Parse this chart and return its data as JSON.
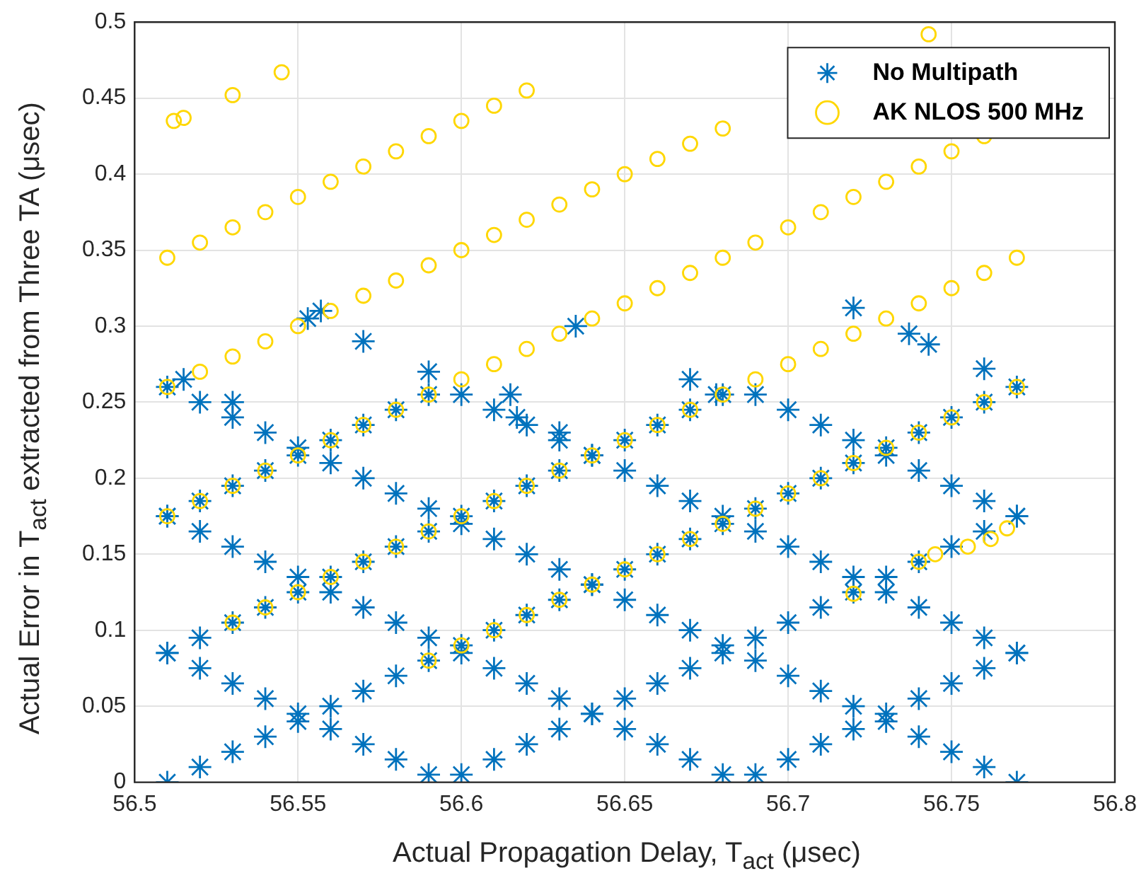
{
  "chart_data": {
    "type": "scatter",
    "xlabel": "Actual Propagation Delay, T$_{act}$ (μsec)",
    "ylabel": "Actual Error in T$_{act}$ extracted from Three TA (μsec)",
    "xlim": [
      56.5,
      56.8
    ],
    "xticks": [
      56.5,
      56.55,
      56.6,
      56.65,
      56.7,
      56.75,
      56.8
    ],
    "ylim": [
      0,
      0.5
    ],
    "yticks": [
      0,
      0.05,
      0.1,
      0.15,
      0.2,
      0.25,
      0.3,
      0.35,
      0.4,
      0.45,
      0.5
    ],
    "grid": true,
    "legend": "top right",
    "series": [
      {
        "name": "No Multipath",
        "color": "#0072bd",
        "marker": "cross",
        "x": [
          56.51,
          56.52,
          56.53,
          56.54,
          56.55,
          56.56,
          56.57,
          56.58,
          56.59,
          56.6,
          56.61,
          56.62,
          56.63,
          56.64,
          56.65,
          56.66,
          56.67,
          56.68,
          56.69,
          56.7,
          56.71,
          56.72,
          56.73,
          56.74,
          56.75,
          56.76,
          56.77,
          56.51,
          56.52,
          56.53,
          56.54,
          56.55,
          56.56,
          56.57,
          56.58,
          56.59,
          56.6,
          56.61,
          56.62,
          56.63,
          56.64,
          56.65,
          56.66,
          56.67,
          56.68,
          56.69,
          56.7,
          56.71,
          56.72,
          56.73,
          56.74,
          56.75,
          56.76,
          56.77,
          56.51,
          56.52,
          56.53,
          56.54,
          56.55,
          56.56,
          56.57,
          56.58,
          56.59,
          56.6,
          56.61,
          56.62,
          56.63,
          56.64,
          56.65,
          56.66,
          56.67,
          56.68,
          56.69,
          56.7,
          56.71,
          56.72,
          56.73,
          56.74,
          56.75,
          56.76,
          56.77,
          56.51,
          56.52,
          56.53,
          56.54,
          56.55,
          56.56,
          56.57,
          56.58,
          56.59,
          56.6,
          56.61,
          56.62,
          56.63,
          56.64,
          56.65,
          56.66,
          56.67,
          56.68,
          56.69,
          56.7,
          56.71,
          56.72,
          56.73,
          56.74,
          56.75,
          56.76,
          56.77,
          56.51,
          56.52,
          56.53,
          56.54,
          56.55,
          56.56,
          56.57,
          56.58,
          56.59,
          56.6,
          56.61,
          56.62,
          56.63,
          56.64,
          56.65,
          56.66,
          56.67,
          56.68,
          56.69,
          56.7,
          56.71,
          56.72,
          56.73,
          56.74,
          56.75,
          56.76,
          56.77,
          56.51,
          56.52,
          56.53,
          56.54,
          56.55,
          56.56,
          56.57,
          56.58,
          56.59,
          56.6,
          56.61,
          56.62,
          56.63,
          56.64,
          56.65,
          56.66,
          56.67,
          56.68,
          56.69,
          56.7,
          56.71,
          56.72,
          56.73,
          56.74,
          56.75,
          56.76,
          56.77,
          56.515,
          56.53,
          56.553,
          56.557,
          56.57,
          56.59,
          56.615,
          56.617,
          56.635,
          56.63,
          56.67,
          56.678,
          56.72,
          56.737,
          56.743,
          56.76
        ],
        "values": [
          0,
          0.01,
          0.02,
          0.03,
          0.04,
          0.05,
          0.06,
          0.07,
          0.08,
          0.09,
          0.1,
          0.11,
          0.12,
          0.13,
          0.14,
          0.15,
          0.16,
          0.17,
          0.18,
          0.19,
          0.2,
          0.21,
          0.22,
          0.23,
          0.24,
          0.25,
          0.26,
          0.26,
          0.25,
          0.24,
          0.23,
          0.22,
          0.21,
          0.2,
          0.19,
          0.18,
          0.17,
          0.16,
          0.15,
          0.14,
          0.13,
          0.12,
          0.11,
          0.1,
          0.09,
          0.08,
          0.07,
          0.06,
          0.05,
          0.04,
          0.03,
          0.02,
          0.01,
          0,
          0.085,
          0.075,
          0.065,
          0.055,
          0.045,
          0.035,
          0.025,
          0.015,
          0.005,
          0.005,
          0.015,
          0.025,
          0.035,
          0.045,
          0.055,
          0.065,
          0.075,
          0.085,
          0.095,
          0.105,
          0.115,
          0.125,
          0.135,
          0.145,
          0.155,
          0.165,
          0.175,
          0.085,
          0.095,
          0.105,
          0.115,
          0.125,
          0.135,
          0.145,
          0.155,
          0.165,
          0.175,
          0.185,
          0.195,
          0.205,
          0.215,
          0.225,
          0.235,
          0.245,
          0.255,
          0.255,
          0.245,
          0.235,
          0.225,
          0.215,
          0.205,
          0.195,
          0.185,
          0.175,
          0.175,
          0.185,
          0.195,
          0.205,
          0.215,
          0.225,
          0.235,
          0.245,
          0.255,
          0.255,
          0.245,
          0.235,
          0.225,
          0.215,
          0.205,
          0.195,
          0.185,
          0.175,
          0.165,
          0.155,
          0.145,
          0.135,
          0.125,
          0.115,
          0.105,
          0.095,
          0.085,
          0.175,
          0.165,
          0.155,
          0.145,
          0.135,
          0.125,
          0.115,
          0.105,
          0.095,
          0.085,
          0.075,
          0.065,
          0.055,
          0.045,
          0.035,
          0.025,
          0.015,
          0.005,
          0.005,
          0.015,
          0.025,
          0.035,
          0.045,
          0.055,
          0.065,
          0.075,
          0.085,
          0.265,
          0.25,
          0.305,
          0.31,
          0.29,
          0.27,
          0.255,
          0.24,
          0.3,
          0.23,
          0.265,
          0.255,
          0.312,
          0.295,
          0.288,
          0.272
        ]
      },
      {
        "name": "AK NLOS 500 MHz",
        "color": "#ffd700",
        "marker": "circle",
        "x": [
          56.59,
          56.6,
          56.61,
          56.62,
          56.63,
          56.64,
          56.65,
          56.66,
          56.67,
          56.68,
          56.69,
          56.7,
          56.71,
          56.72,
          56.73,
          56.74,
          56.75,
          56.76,
          56.77,
          56.53,
          56.54,
          56.55,
          56.56,
          56.57,
          56.58,
          56.59,
          56.6,
          56.61,
          56.62,
          56.63,
          56.64,
          56.65,
          56.66,
          56.67,
          56.68,
          56.69,
          56.7,
          56.71,
          56.72,
          56.73,
          56.74,
          56.75,
          56.76,
          56.77,
          56.51,
          56.52,
          56.53,
          56.54,
          56.55,
          56.56,
          56.57,
          56.58,
          56.59,
          56.6,
          56.61,
          56.62,
          56.63,
          56.64,
          56.65,
          56.66,
          56.67,
          56.68,
          56.69,
          56.7,
          56.71,
          56.72,
          56.73,
          56.74,
          56.75,
          56.76,
          56.51,
          56.52,
          56.53,
          56.54,
          56.55,
          56.56,
          56.57,
          56.58,
          56.59,
          56.6,
          56.61,
          56.62,
          56.63,
          56.64,
          56.65,
          56.66,
          56.67,
          56.68,
          56.51,
          56.52,
          56.53,
          56.54,
          56.55,
          56.56,
          56.57,
          56.58,
          56.59,
          56.6,
          56.61,
          56.62,
          56.512,
          56.515,
          56.53,
          56.545,
          56.743,
          56.72,
          56.74,
          56.745,
          56.755,
          56.762,
          56.767
        ],
        "values": [
          0.08,
          0.09,
          0.1,
          0.11,
          0.12,
          0.13,
          0.14,
          0.15,
          0.16,
          0.17,
          0.18,
          0.19,
          0.2,
          0.21,
          0.22,
          0.23,
          0.24,
          0.25,
          0.26,
          0.105,
          0.115,
          0.125,
          0.135,
          0.145,
          0.155,
          0.165,
          0.175,
          0.185,
          0.195,
          0.205,
          0.215,
          0.225,
          0.235,
          0.245,
          0.255,
          0.265,
          0.275,
          0.285,
          0.295,
          0.305,
          0.315,
          0.325,
          0.335,
          0.345,
          0.175,
          0.185,
          0.195,
          0.205,
          0.215,
          0.225,
          0.235,
          0.245,
          0.255,
          0.265,
          0.275,
          0.285,
          0.295,
          0.305,
          0.315,
          0.325,
          0.335,
          0.345,
          0.355,
          0.365,
          0.375,
          0.385,
          0.395,
          0.405,
          0.415,
          0.425,
          0.26,
          0.27,
          0.28,
          0.29,
          0.3,
          0.31,
          0.32,
          0.33,
          0.34,
          0.35,
          0.36,
          0.37,
          0.38,
          0.39,
          0.4,
          0.41,
          0.42,
          0.43,
          0.345,
          0.355,
          0.365,
          0.375,
          0.385,
          0.395,
          0.405,
          0.415,
          0.425,
          0.435,
          0.445,
          0.455,
          0.435,
          0.437,
          0.452,
          0.467,
          0.492,
          0.124,
          0.145,
          0.15,
          0.155,
          0.16,
          0.167
        ]
      }
    ]
  }
}
